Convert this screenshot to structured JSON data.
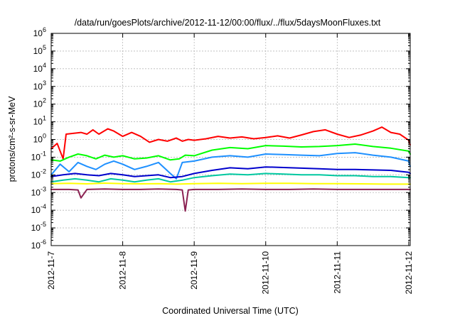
{
  "chart_data": {
    "type": "line",
    "title": "/data/run/goesPlots/archive/2012-11-12/00:00/flux/../flux/5daysMoonFluxes.txt",
    "xlabel": "Coordinated Universal Time (UTC)",
    "ylabel": "protons/cm²-s-sr-MeV",
    "x_scale": "time",
    "y_scale": "log",
    "xlim": [
      "2012-11-07",
      "2012-11-12T00:30"
    ],
    "ylim": [
      1e-06,
      1000000.0
    ],
    "grid": true,
    "x_ticks": [
      "2012-11-7",
      "2012-11-8",
      "2012-11-9",
      "2012-11-10",
      "2012-11-11",
      "2012-11-12"
    ],
    "y_ticks": [
      {
        "value": 1e-06,
        "base": "10",
        "exp": "-6"
      },
      {
        "value": 1e-05,
        "base": "10",
        "exp": "-5"
      },
      {
        "value": 0.0001,
        "base": "10",
        "exp": "-4"
      },
      {
        "value": 0.001,
        "base": "10",
        "exp": "-3"
      },
      {
        "value": 0.01,
        "base": "10",
        "exp": "-2"
      },
      {
        "value": 0.1,
        "base": "10",
        "exp": "-1"
      },
      {
        "value": 1,
        "base": "10",
        "exp": "0"
      },
      {
        "value": 10,
        "base": "10",
        "exp": "1"
      },
      {
        "value": 100,
        "base": "10",
        "exp": "2"
      },
      {
        "value": 1000,
        "base": "10",
        "exp": "3"
      },
      {
        "value": 10000,
        "base": "10",
        "exp": "4"
      },
      {
        "value": 100000,
        "base": "10",
        "exp": "5"
      },
      {
        "value": 1000000,
        "base": "10",
        "exp": "6"
      }
    ],
    "series": [
      {
        "color": "#ff0000",
        "x": [
          "2012-11-07T00:00",
          "2012-11-07T02:00",
          "2012-11-07T04:00",
          "2012-11-07T05:00",
          "2012-11-07T10:00",
          "2012-11-07T12:00",
          "2012-11-07T14:00",
          "2012-11-07T16:00",
          "2012-11-07T19:00",
          "2012-11-07T21:00",
          "2012-11-08T00:00",
          "2012-11-08T03:00",
          "2012-11-08T06:00",
          "2012-11-08T09:00",
          "2012-11-08T12:00",
          "2012-11-08T15:00",
          "2012-11-08T18:00",
          "2012-11-08T20:00",
          "2012-11-08T22:00",
          "2012-11-09T00:00",
          "2012-11-09T04:00",
          "2012-11-09T08:00",
          "2012-11-09T12:00",
          "2012-11-09T16:00",
          "2012-11-09T20:00",
          "2012-11-10T00:00",
          "2012-11-10T04:00",
          "2012-11-10T08:00",
          "2012-11-10T12:00",
          "2012-11-10T16:00",
          "2012-11-10T20:00",
          "2012-11-11T00:00",
          "2012-11-11T04:00",
          "2012-11-11T08:00",
          "2012-11-11T12:00",
          "2012-11-11T15:00",
          "2012-11-11T18:00",
          "2012-11-11T21:00",
          "2012-11-12T00:00",
          "2012-11-12T00:30"
        ],
        "y": [
          0.3,
          0.6,
          0.08,
          2.0,
          2.5,
          2.0,
          3.5,
          2.0,
          4.0,
          3.0,
          1.5,
          2.5,
          1.5,
          0.7,
          1.0,
          0.8,
          1.2,
          0.8,
          1.0,
          0.9,
          1.1,
          1.5,
          1.2,
          1.4,
          1.1,
          1.3,
          1.6,
          1.2,
          1.8,
          2.8,
          3.5,
          2.0,
          1.3,
          1.8,
          3.0,
          5.0,
          2.5,
          2.0,
          0.9,
          0.5
        ]
      },
      {
        "color": "#00ff00",
        "x": [
          "2012-11-07T00:00",
          "2012-11-07T03:00",
          "2012-11-07T06:00",
          "2012-11-07T09:00",
          "2012-11-07T12:00",
          "2012-11-07T15:00",
          "2012-11-07T18:00",
          "2012-11-07T21:00",
          "2012-11-08T00:00",
          "2012-11-08T04:00",
          "2012-11-08T08:00",
          "2012-11-08T12:00",
          "2012-11-08T16:00",
          "2012-11-08T19:00",
          "2012-11-08T21:00",
          "2012-11-09T00:00",
          "2012-11-09T06:00",
          "2012-11-09T12:00",
          "2012-11-09T18:00",
          "2012-11-10T00:00",
          "2012-11-10T06:00",
          "2012-11-10T12:00",
          "2012-11-10T18:00",
          "2012-11-11T00:00",
          "2012-11-11T06:00",
          "2012-11-11T12:00",
          "2012-11-11T18:00",
          "2012-11-12T00:00",
          "2012-11-12T00:30"
        ],
        "y": [
          0.07,
          0.06,
          0.1,
          0.15,
          0.12,
          0.08,
          0.13,
          0.1,
          0.12,
          0.08,
          0.09,
          0.12,
          0.07,
          0.08,
          0.13,
          0.12,
          0.25,
          0.35,
          0.3,
          0.45,
          0.42,
          0.38,
          0.4,
          0.45,
          0.55,
          0.4,
          0.32,
          0.22,
          0.15
        ]
      },
      {
        "color": "#1e90ff",
        "x": [
          "2012-11-07T00:00",
          "2012-11-07T03:00",
          "2012-11-07T06:00",
          "2012-11-07T09:00",
          "2012-11-07T12:00",
          "2012-11-07T15:00",
          "2012-11-07T18:00",
          "2012-11-07T21:00",
          "2012-11-08T00:00",
          "2012-11-08T04:00",
          "2012-11-08T08:00",
          "2012-11-08T12:00",
          "2012-11-08T16:00",
          "2012-11-08T18:00",
          "2012-11-08T20:00",
          "2012-11-09T00:00",
          "2012-11-09T06:00",
          "2012-11-09T12:00",
          "2012-11-09T18:00",
          "2012-11-10T00:00",
          "2012-11-10T06:00",
          "2012-11-10T12:00",
          "2012-11-10T18:00",
          "2012-11-11T00:00",
          "2012-11-11T06:00",
          "2012-11-11T12:00",
          "2012-11-11T18:00",
          "2012-11-12T00:00",
          "2012-11-12T00:30"
        ],
        "y": [
          0.01,
          0.04,
          0.015,
          0.05,
          0.03,
          0.02,
          0.04,
          0.06,
          0.04,
          0.02,
          0.03,
          0.05,
          0.012,
          0.006,
          0.05,
          0.06,
          0.1,
          0.12,
          0.1,
          0.15,
          0.14,
          0.13,
          0.12,
          0.16,
          0.18,
          0.13,
          0.1,
          0.06,
          0.03
        ]
      },
      {
        "color": "#0000cd",
        "x": [
          "2012-11-07T00:00",
          "2012-11-07T04:00",
          "2012-11-07T08:00",
          "2012-11-07T12:00",
          "2012-11-07T16:00",
          "2012-11-07T20:00",
          "2012-11-08T00:00",
          "2012-11-08T04:00",
          "2012-11-08T08:00",
          "2012-11-08T12:00",
          "2012-11-08T16:00",
          "2012-11-08T20:00",
          "2012-11-09T00:00",
          "2012-11-09T06:00",
          "2012-11-09T12:00",
          "2012-11-09T18:00",
          "2012-11-10T00:00",
          "2012-11-10T06:00",
          "2012-11-10T12:00",
          "2012-11-10T18:00",
          "2012-11-11T00:00",
          "2012-11-11T06:00",
          "2012-11-11T12:00",
          "2012-11-11T18:00",
          "2012-11-12T00:00",
          "2012-11-12T00:30"
        ],
        "y": [
          0.008,
          0.01,
          0.012,
          0.01,
          0.009,
          0.012,
          0.01,
          0.008,
          0.009,
          0.01,
          0.007,
          0.008,
          0.012,
          0.018,
          0.025,
          0.022,
          0.028,
          0.026,
          0.024,
          0.022,
          0.02,
          0.02,
          0.019,
          0.018,
          0.014,
          0.012
        ]
      },
      {
        "color": "#00c8a0",
        "x": [
          "2012-11-07T00:00",
          "2012-11-07T04:00",
          "2012-11-07T08:00",
          "2012-11-07T12:00",
          "2012-11-07T16:00",
          "2012-11-07T20:00",
          "2012-11-08T00:00",
          "2012-11-08T04:00",
          "2012-11-08T08:00",
          "2012-11-08T12:00",
          "2012-11-08T16:00",
          "2012-11-08T20:00",
          "2012-11-09T00:00",
          "2012-11-09T06:00",
          "2012-11-09T12:00",
          "2012-11-09T18:00",
          "2012-11-10T00:00",
          "2012-11-10T06:00",
          "2012-11-10T12:00",
          "2012-11-10T18:00",
          "2012-11-11T00:00",
          "2012-11-11T06:00",
          "2012-11-11T12:00",
          "2012-11-11T18:00",
          "2012-11-12T00:00",
          "2012-11-12T00:30"
        ],
        "y": [
          0.004,
          0.005,
          0.006,
          0.005,
          0.004,
          0.006,
          0.005,
          0.004,
          0.005,
          0.006,
          0.004,
          0.005,
          0.007,
          0.009,
          0.011,
          0.01,
          0.012,
          0.011,
          0.01,
          0.01,
          0.009,
          0.009,
          0.008,
          0.008,
          0.007,
          0.007
        ]
      },
      {
        "color": "#ffff00",
        "x": [
          "2012-11-07T00:00",
          "2012-11-07T06:00",
          "2012-11-07T12:00",
          "2012-11-07T18:00",
          "2012-11-08T00:00",
          "2012-11-08T06:00",
          "2012-11-08T12:00",
          "2012-11-08T18:00",
          "2012-11-09T00:00",
          "2012-11-09T08:00",
          "2012-11-09T16:00",
          "2012-11-10T00:00",
          "2012-11-10T08:00",
          "2012-11-10T16:00",
          "2012-11-11T00:00",
          "2012-11-11T08:00",
          "2012-11-11T16:00",
          "2012-11-12T00:00",
          "2012-11-12T00:30"
        ],
        "y": [
          0.0032,
          0.0033,
          0.0031,
          0.0034,
          0.0032,
          0.0031,
          0.0032,
          0.003,
          0.0032,
          0.0033,
          0.0032,
          0.0033,
          0.0033,
          0.0032,
          0.0032,
          0.0031,
          0.003,
          0.003,
          0.003
        ]
      },
      {
        "color": "#8b2252",
        "x": [
          "2012-11-07T00:00",
          "2012-11-07T06:00",
          "2012-11-07T09:00",
          "2012-11-07T10:00",
          "2012-11-07T12:00",
          "2012-11-07T18:00",
          "2012-11-08T00:00",
          "2012-11-08T06:00",
          "2012-11-08T12:00",
          "2012-11-08T18:00",
          "2012-11-08T20:00",
          "2012-11-08T21:00",
          "2012-11-08T22:00",
          "2012-11-09T00:00",
          "2012-11-09T08:00",
          "2012-11-09T16:00",
          "2012-11-10T00:00",
          "2012-11-10T08:00",
          "2012-11-10T16:00",
          "2012-11-11T00:00",
          "2012-11-11T08:00",
          "2012-11-11T16:00",
          "2012-11-12T00:00",
          "2012-11-12T00:30"
        ],
        "y": [
          0.0015,
          0.0015,
          0.0014,
          0.0005,
          0.0015,
          0.0016,
          0.0015,
          0.0015,
          0.0016,
          0.0015,
          0.0014,
          9e-05,
          0.0014,
          0.0015,
          0.0015,
          0.0016,
          0.0015,
          0.0015,
          0.0016,
          0.0015,
          0.0015,
          0.0015,
          0.0015,
          0.0015
        ]
      }
    ]
  }
}
